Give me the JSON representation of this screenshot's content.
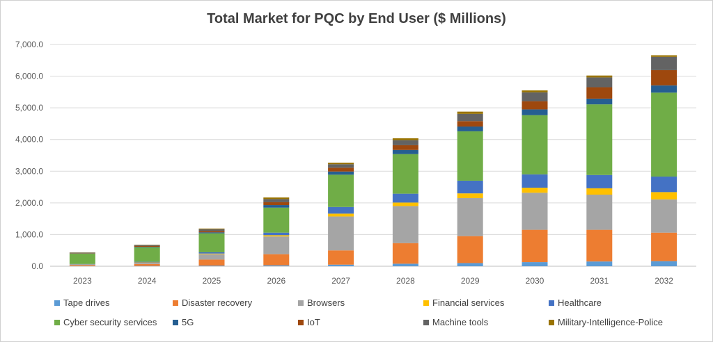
{
  "chart_data": {
    "type": "bar",
    "stacked": true,
    "title": "Total Market for PQC by End User ($ Millions)",
    "xlabel": "",
    "ylabel": "",
    "ylim": [
      0,
      7000
    ],
    "yticks": [
      0,
      1000,
      2000,
      3000,
      4000,
      5000,
      6000,
      7000
    ],
    "ytick_labels": [
      "0.0",
      "1,000.0",
      "2,000.0",
      "3,000.0",
      "4,000.0",
      "5,000.0",
      "6,000.0",
      "7,000.0"
    ],
    "grid": true,
    "legend_position": "bottom",
    "categories": [
      "2023",
      "2024",
      "2025",
      "2026",
      "2027",
      "2028",
      "2029",
      "2030",
      "2031",
      "2032"
    ],
    "series": [
      {
        "name": "Tape drives",
        "color": "#5B9BD5",
        "values": [
          5,
          10,
          20,
          30,
          50,
          80,
          100,
          130,
          150,
          160
        ]
      },
      {
        "name": "Disaster recovery",
        "color": "#ED7D31",
        "values": [
          30,
          60,
          190,
          350,
          450,
          650,
          850,
          1020,
          1000,
          900
        ]
      },
      {
        "name": "Browsers",
        "color": "#A5A5A5",
        "values": [
          20,
          40,
          170,
          560,
          1070,
          1170,
          1200,
          1170,
          1110,
          1050
        ]
      },
      {
        "name": "Financial services",
        "color": "#FFC000",
        "values": [
          5,
          10,
          20,
          40,
          90,
          110,
          150,
          160,
          200,
          230
        ]
      },
      {
        "name": "Healthcare",
        "color": "#4472C4",
        "values": [
          10,
          20,
          40,
          80,
          210,
          280,
          400,
          420,
          420,
          490
        ]
      },
      {
        "name": "Cyber security services",
        "color": "#70AD47",
        "values": [
          330,
          460,
          600,
          790,
          1020,
          1250,
          1560,
          1870,
          2230,
          2650
        ]
      },
      {
        "name": "5G",
        "color": "#255E91",
        "values": [
          5,
          15,
          30,
          80,
          100,
          130,
          150,
          180,
          180,
          230
        ]
      },
      {
        "name": "IoT",
        "color": "#9E480E",
        "values": [
          10,
          25,
          40,
          90,
          120,
          150,
          170,
          260,
          360,
          480
        ]
      },
      {
        "name": "Machine tools",
        "color": "#636363",
        "values": [
          15,
          30,
          60,
          100,
          110,
          160,
          230,
          280,
          310,
          420
        ]
      },
      {
        "name": "Military-Intelligence-Police",
        "color": "#997300",
        "values": [
          5,
          10,
          20,
          50,
          50,
          60,
          70,
          60,
          60,
          50
        ]
      }
    ]
  }
}
